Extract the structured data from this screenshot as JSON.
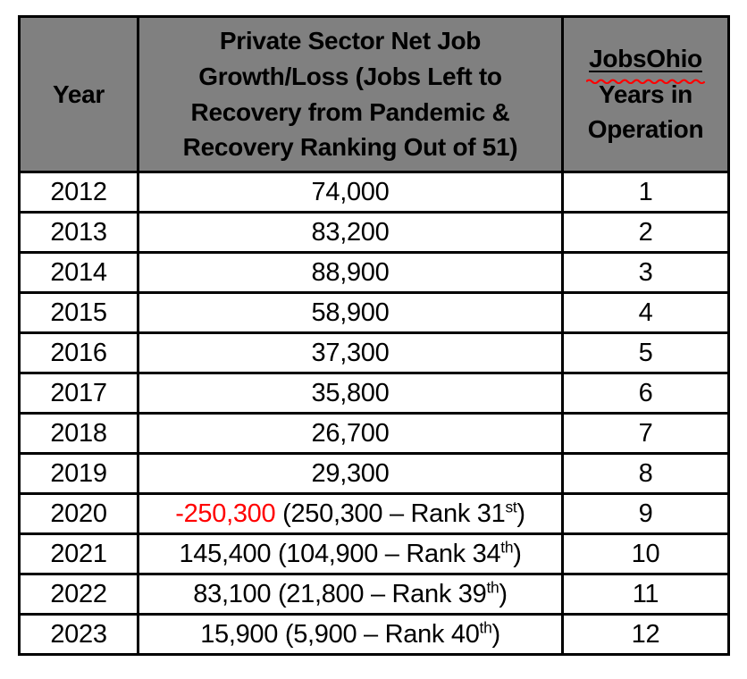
{
  "table": {
    "header": {
      "year": "Year",
      "growth": "Private Sector Net Job Growth/Loss (Jobs Left to Recovery from Pandemic & Recovery Ranking Out of 51)",
      "jobsohio_word": "JobsOhio",
      "jobsohio_rest": "Years in Operation"
    },
    "rows": [
      {
        "year": "2012",
        "growth": [
          {
            "text": "74,000"
          }
        ],
        "ops": "1"
      },
      {
        "year": "2013",
        "growth": [
          {
            "text": "83,200"
          }
        ],
        "ops": "2"
      },
      {
        "year": "2014",
        "growth": [
          {
            "text": "88,900"
          }
        ],
        "ops": "3"
      },
      {
        "year": "2015",
        "growth": [
          {
            "text": "58,900"
          }
        ],
        "ops": "4"
      },
      {
        "year": "2016",
        "growth": [
          {
            "text": "37,300"
          }
        ],
        "ops": "5"
      },
      {
        "year": "2017",
        "growth": [
          {
            "text": "35,800"
          }
        ],
        "ops": "6"
      },
      {
        "year": "2018",
        "growth": [
          {
            "text": "26,700"
          }
        ],
        "ops": "7"
      },
      {
        "year": "2019",
        "growth": [
          {
            "text": "29,300"
          }
        ],
        "ops": "8"
      },
      {
        "year": "2020",
        "growth": [
          {
            "text": "-250,300",
            "red": true
          },
          {
            "text": " (250,300 – Rank 31"
          },
          {
            "text": "st",
            "sup": true
          },
          {
            "text": ")"
          }
        ],
        "ops": "9"
      },
      {
        "year": "2021",
        "growth": [
          {
            "text": "145,400 (104,900 – Rank 34"
          },
          {
            "text": "th",
            "sup": true
          },
          {
            "text": ")"
          }
        ],
        "ops": "10"
      },
      {
        "year": "2022",
        "growth": [
          {
            "text": "83,100 (21,800 – Rank 39"
          },
          {
            "text": "th",
            "sup": true
          },
          {
            "text": ")"
          }
        ],
        "ops": "11"
      },
      {
        "year": "2023",
        "growth": [
          {
            "text": "15,900 (5,900 – Rank 40"
          },
          {
            "text": "th",
            "sup": true
          },
          {
            "text": ")"
          }
        ],
        "ops": "12"
      }
    ],
    "colors": {
      "page_background": "#ffffff",
      "header_background": "#808080",
      "border": "#000000",
      "text": "#000000",
      "negative_value": "#ff0000",
      "squiggle": "#ff0000"
    }
  },
  "chart_data": {
    "type": "table",
    "columns": [
      "Year",
      "Private Sector Net Job Growth/Loss (Jobs Left to Recovery from Pandemic & Recovery Ranking Out of 51)",
      "JobsOhio Years in Operation"
    ],
    "rows": [
      [
        "2012",
        "74,000",
        "1"
      ],
      [
        "2013",
        "83,200",
        "2"
      ],
      [
        "2014",
        "88,900",
        "3"
      ],
      [
        "2015",
        "58,900",
        "4"
      ],
      [
        "2016",
        "37,300",
        "5"
      ],
      [
        "2017",
        "35,800",
        "6"
      ],
      [
        "2018",
        "26,700",
        "7"
      ],
      [
        "2019",
        "29,300",
        "8"
      ],
      [
        "2020",
        "-250,300 (250,300 – Rank 31st)",
        "9"
      ],
      [
        "2021",
        "145,400 (104,900 – Rank 34th)",
        "10"
      ],
      [
        "2022",
        "83,100 (21,800 – Rank 39th)",
        "11"
      ],
      [
        "2023",
        "15,900 (5,900 – Rank 40th)",
        "12"
      ]
    ]
  }
}
